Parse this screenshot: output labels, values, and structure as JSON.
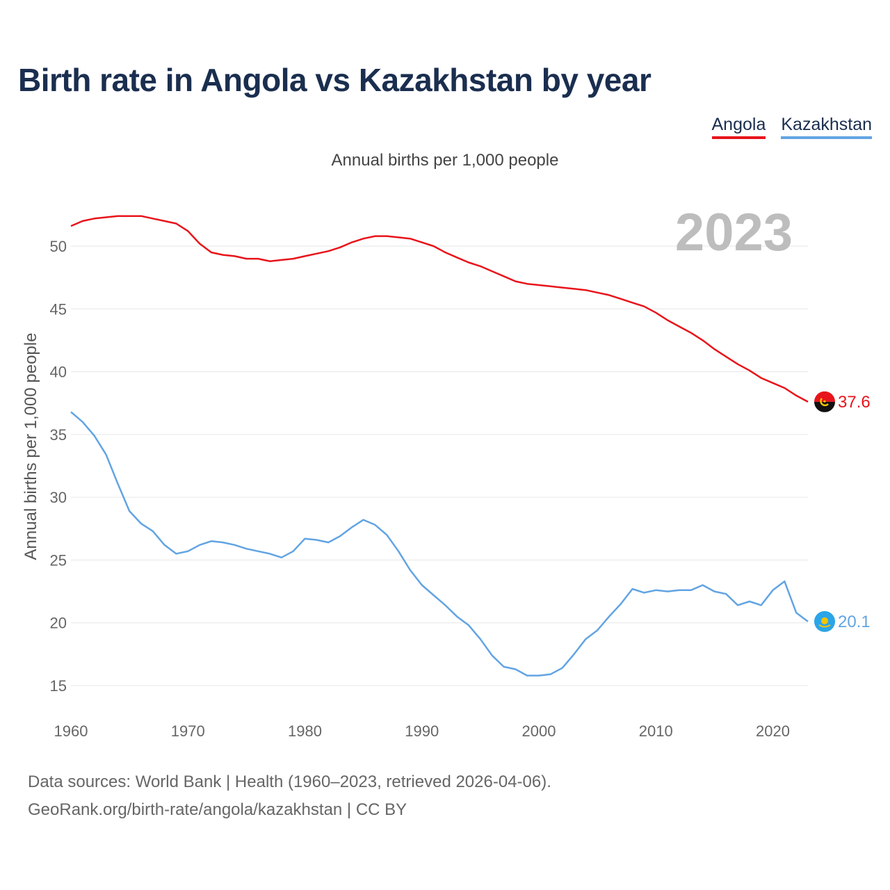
{
  "header": {
    "title": "Birth rate in Angola vs Kazakhstan by year",
    "subtitle": "Annual births per 1,000 people"
  },
  "footer": {
    "line1": "Data sources: World Bank | Health (1960–2023, retrieved 2026-04-06).",
    "line2": "GeoRank.org/birth-rate/angola/kazakhstan | CC BY"
  },
  "colors": {
    "angola": "#e8141b",
    "kazakhstan": "#62a4e3",
    "text": "#1a2e4f"
  },
  "chart_data": {
    "type": "line",
    "title": "Birth rate in Angola vs Kazakhstan by year",
    "ylabel": "Annual births per 1,000 people",
    "xlabel": "",
    "current_year": "2023",
    "xlim": [
      1960,
      2023
    ],
    "ylim": [
      13,
      54
    ],
    "yticks": [
      15,
      20,
      25,
      30,
      35,
      40,
      45,
      50
    ],
    "xticks": [
      1960,
      1970,
      1980,
      1990,
      2000,
      2010,
      2020
    ],
    "grid": true,
    "legend_position": "top-right",
    "x": [
      1960,
      1961,
      1962,
      1963,
      1964,
      1965,
      1966,
      1967,
      1968,
      1969,
      1970,
      1971,
      1972,
      1973,
      1974,
      1975,
      1976,
      1977,
      1978,
      1979,
      1980,
      1981,
      1982,
      1983,
      1984,
      1985,
      1986,
      1987,
      1988,
      1989,
      1990,
      1991,
      1992,
      1993,
      1994,
      1995,
      1996,
      1997,
      1998,
      1999,
      2000,
      2001,
      2002,
      2003,
      2004,
      2005,
      2006,
      2007,
      2008,
      2009,
      2010,
      2011,
      2012,
      2013,
      2014,
      2015,
      2016,
      2017,
      2018,
      2019,
      2020,
      2021,
      2022,
      2023
    ],
    "series": [
      {
        "name": "Angola",
        "end_label": "37.6",
        "values": [
          51.6,
          52.0,
          52.2,
          52.3,
          52.4,
          52.4,
          52.4,
          52.2,
          52.0,
          51.8,
          51.2,
          50.2,
          49.5,
          49.3,
          49.2,
          49.0,
          49.0,
          48.8,
          48.9,
          49.0,
          49.2,
          49.4,
          49.6,
          49.9,
          50.3,
          50.6,
          50.8,
          50.8,
          50.7,
          50.6,
          50.3,
          50.0,
          49.5,
          49.1,
          48.7,
          48.4,
          48.0,
          47.6,
          47.2,
          47.0,
          46.9,
          46.8,
          46.7,
          46.6,
          46.5,
          46.3,
          46.1,
          45.8,
          45.5,
          45.2,
          44.7,
          44.1,
          43.6,
          43.1,
          42.5,
          41.8,
          41.2,
          40.6,
          40.1,
          39.5,
          39.1,
          38.7,
          38.1,
          37.6
        ]
      },
      {
        "name": "Kazakhstan",
        "end_label": "20.1",
        "values": [
          36.8,
          36.0,
          34.9,
          33.4,
          31.1,
          28.9,
          27.9,
          27.3,
          26.2,
          25.5,
          25.7,
          26.2,
          26.5,
          26.4,
          26.2,
          25.9,
          25.7,
          25.5,
          25.2,
          25.7,
          26.7,
          26.6,
          26.4,
          26.9,
          27.6,
          28.2,
          27.8,
          27.0,
          25.7,
          24.2,
          23.0,
          22.2,
          21.4,
          20.5,
          19.8,
          18.7,
          17.4,
          16.5,
          16.3,
          15.8,
          15.8,
          15.9,
          16.4,
          17.5,
          18.7,
          19.4,
          20.5,
          21.5,
          22.7,
          22.4,
          22.6,
          22.5,
          22.6,
          22.6,
          23.0,
          22.5,
          22.3,
          21.4,
          21.7,
          21.4,
          22.6,
          23.3,
          20.8,
          20.1
        ]
      }
    ]
  }
}
